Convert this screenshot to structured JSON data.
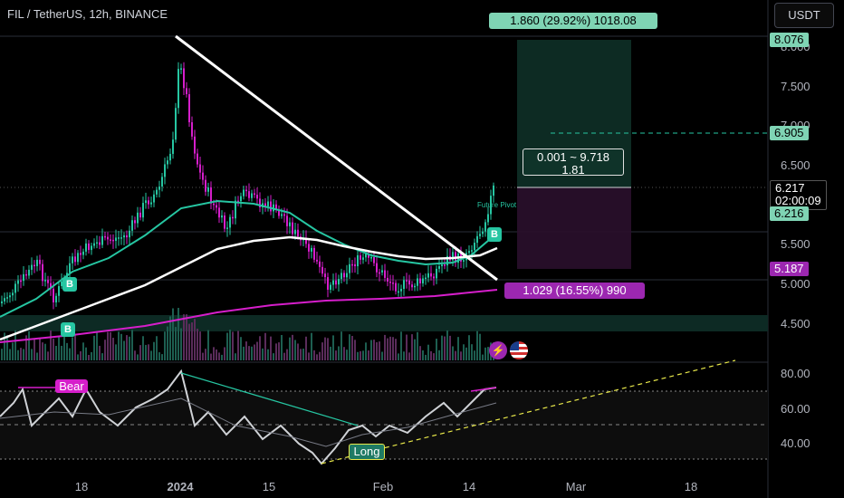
{
  "header": {
    "title": "FIL / TetherUS, 12h, BINANCE",
    "currency_button": "USDT"
  },
  "price_axis": {
    "ticks": [
      "8.000",
      "7.500",
      "7.000",
      "6.500",
      "5.500",
      "5.000",
      "4.500"
    ],
    "tags": {
      "target": "8.076",
      "future_line": "6.905",
      "current_price": "6.217",
      "countdown": "02:00:09",
      "entry": "6.216",
      "stop": "5.187"
    }
  },
  "rsi_axis": {
    "ticks": [
      "80.00",
      "60.00",
      "40.00"
    ]
  },
  "time_axis": {
    "labels": [
      "18",
      "2024",
      "15",
      "Feb",
      "14",
      "Mar",
      "18"
    ]
  },
  "position": {
    "target_label": "1.860 (29.92%) 1018.08",
    "stop_label": "1.029 (16.55%) 990",
    "ratio_line1": "0.001 ~ 9.718",
    "ratio_line2": "1.81"
  },
  "annotations": {
    "bear": "Bear",
    "long": "Long",
    "pivot": "Future Pivot",
    "signal": "B"
  },
  "colors": {
    "accent_green": "#26c6a2",
    "magenta": "#d61ecb",
    "stop_purple": "#9c27b0",
    "bg": "#000000"
  },
  "icons": [
    "lightning-icon",
    "us-flag-icon"
  ]
}
